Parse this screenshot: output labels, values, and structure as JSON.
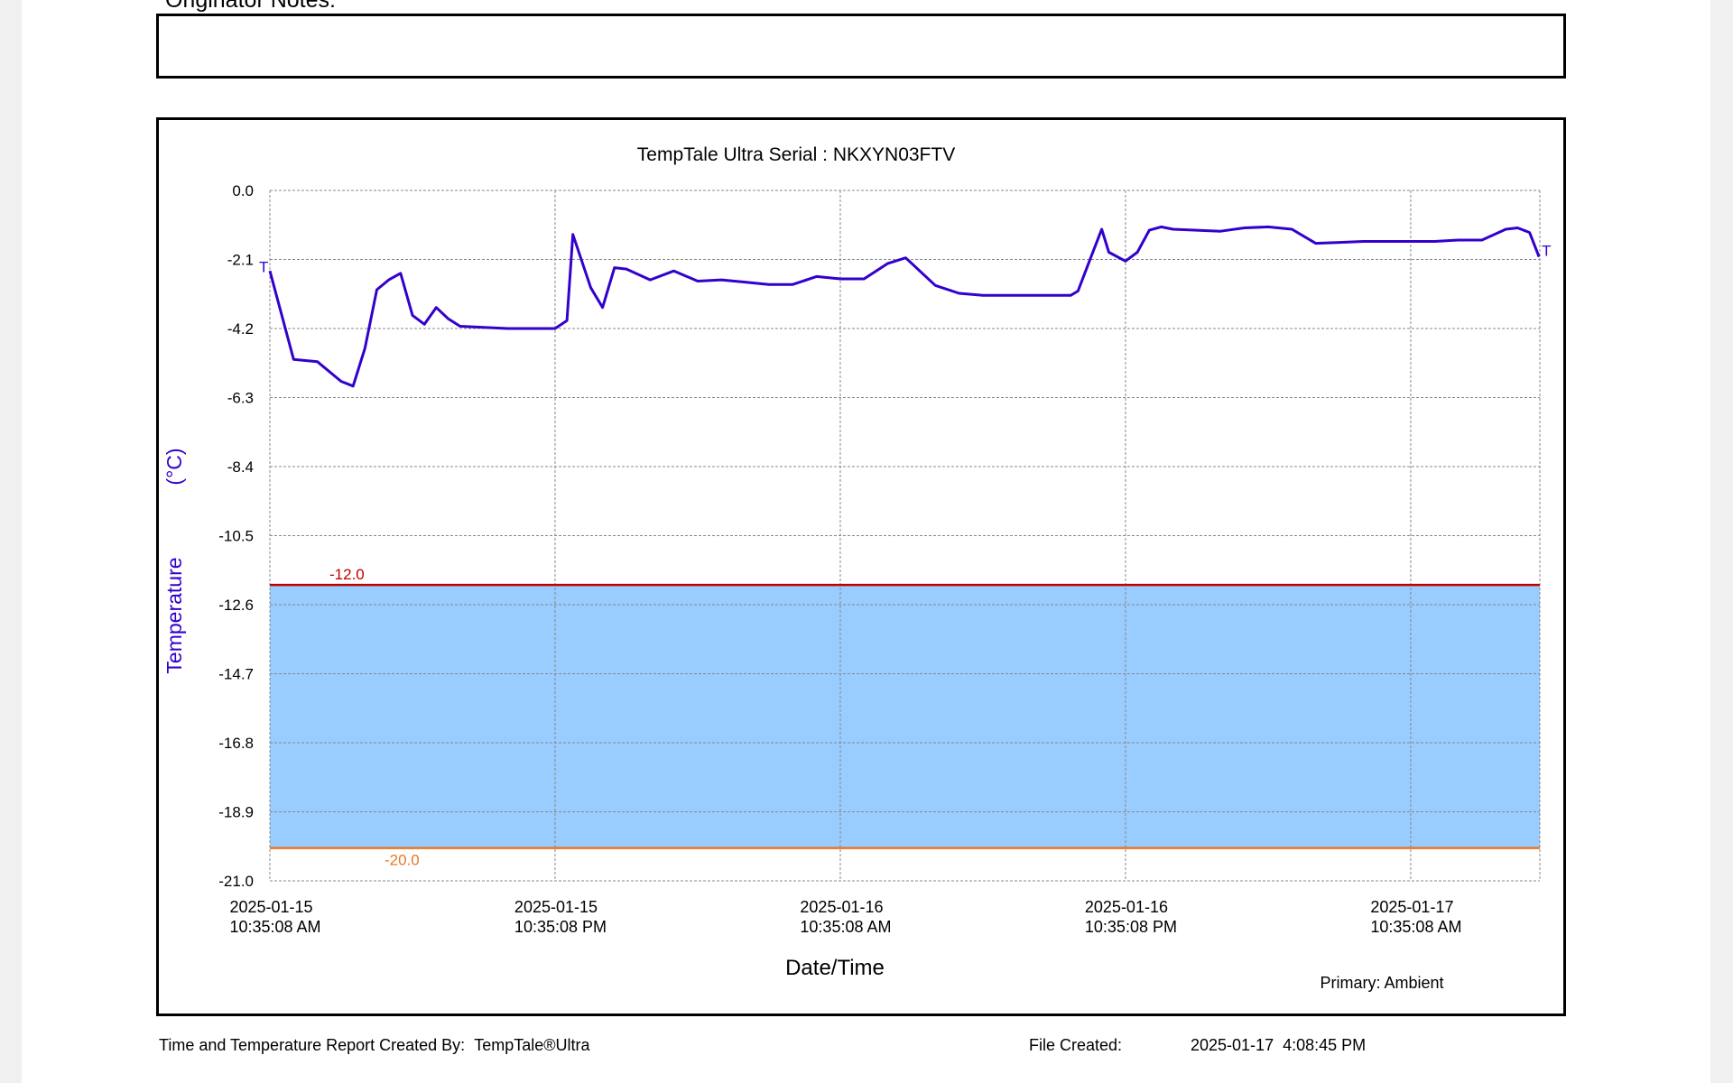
{
  "notes_label": "Originator Notes:",
  "footer_left": "Time and Temperature Report Created By:",
  "footer_product": "TempTale®Ultra",
  "file_created_label": "File Created:",
  "file_created": "2025-01-17  4:08:45 PM",
  "chart_data": {
    "type": "line",
    "title": "TempTale Ultra  Serial : NKXYN03FTV",
    "xlabel": "Date/Time",
    "ylabel": "Temperature",
    "yunit": "(°C)",
    "legend": "Primary: Ambient",
    "trip_marker": "T",
    "grid": true,
    "xlim": [
      "2025-01-15 10:35:08",
      "2025-01-17 16:01:08"
    ],
    "xticks": [
      {
        "value": "2025-01-15 10:35:08",
        "label": "2025-01-15\n10:35:08 AM"
      },
      {
        "value": "2025-01-15 22:35:08",
        "label": "2025-01-15\n10:35:08 PM"
      },
      {
        "value": "2025-01-16 10:35:08",
        "label": "2025-01-16\n10:35:08 AM"
      },
      {
        "value": "2025-01-16 22:35:08",
        "label": "2025-01-16\n10:35:08 PM"
      },
      {
        "value": "2025-01-17 10:35:08",
        "label": "2025-01-17\n10:35:08 AM"
      }
    ],
    "ylim": [
      -21.0,
      0.0
    ],
    "yticks": [
      {
        "value": 0.0,
        "label": "0.0"
      },
      {
        "value": -2.1,
        "label": "-2.1"
      },
      {
        "value": -4.2,
        "label": "-4.2"
      },
      {
        "value": -6.3,
        "label": "-6.3"
      },
      {
        "value": -8.4,
        "label": "-8.4"
      },
      {
        "value": -10.5,
        "label": "-10.5"
      },
      {
        "value": -12.6,
        "label": "-12.6"
      },
      {
        "value": -14.7,
        "label": "-14.7"
      },
      {
        "value": -16.8,
        "label": "-16.8"
      },
      {
        "value": -18.9,
        "label": "-18.9"
      },
      {
        "value": -21.0,
        "label": "-21.0"
      }
    ],
    "thresholds": [
      {
        "value": -12.0,
        "label": "-12.0",
        "color": "#c00000"
      },
      {
        "value": -20.0,
        "label": "-20.0",
        "color": "#e87722"
      }
    ],
    "band_color": "#99ccff",
    "x": [
      "2025-01-15 10:35:08",
      "2025-01-15 11:35:08",
      "2025-01-15 12:35:08",
      "2025-01-15 13:35:08",
      "2025-01-15 14:05:08",
      "2025-01-15 14:35:08",
      "2025-01-15 15:05:08",
      "2025-01-15 15:35:08",
      "2025-01-15 16:05:08",
      "2025-01-15 16:35:08",
      "2025-01-15 17:05:08",
      "2025-01-15 17:35:08",
      "2025-01-15 18:05:08",
      "2025-01-15 18:35:08",
      "2025-01-15 20:35:08",
      "2025-01-15 22:35:08",
      "2025-01-15 23:05:08",
      "2025-01-15 23:20:08",
      "2025-01-16 00:05:08",
      "2025-01-16 00:35:08",
      "2025-01-16 01:05:08",
      "2025-01-16 01:35:08",
      "2025-01-16 02:35:08",
      "2025-01-16 03:35:08",
      "2025-01-16 04:35:08",
      "2025-01-16 05:35:08",
      "2025-01-16 06:35:08",
      "2025-01-16 07:35:08",
      "2025-01-16 08:35:08",
      "2025-01-16 09:35:08",
      "2025-01-16 10:35:08",
      "2025-01-16 11:35:08",
      "2025-01-16 12:35:08",
      "2025-01-16 13:20:08",
      "2025-01-16 14:35:08",
      "2025-01-16 15:35:08",
      "2025-01-16 16:35:08",
      "2025-01-16 20:17:08",
      "2025-01-16 20:35:08",
      "2025-01-16 21:05:08",
      "2025-01-16 21:35:08",
      "2025-01-16 21:53:08",
      "2025-01-16 22:35:08",
      "2025-01-16 23:05:08",
      "2025-01-16 23:35:08",
      "2025-01-17 00:05:08",
      "2025-01-17 00:35:08",
      "2025-01-17 01:35:08",
      "2025-01-17 02:35:08",
      "2025-01-17 03:35:08",
      "2025-01-17 04:35:08",
      "2025-01-17 05:35:08",
      "2025-01-17 06:35:08",
      "2025-01-17 07:35:08",
      "2025-01-17 08:35:08",
      "2025-01-17 09:35:08",
      "2025-01-17 10:35:08",
      "2025-01-17 11:35:08",
      "2025-01-17 12:35:08",
      "2025-01-17 13:35:08",
      "2025-01-17 14:35:08",
      "2025-01-17 15:05:08",
      "2025-01-17 15:35:08",
      "2025-01-17 15:59:08"
    ],
    "series": [
      {
        "name": "Primary: Ambient",
        "color": "#3300cc",
        "values": [
          -2.45,
          -5.14,
          -5.21,
          -5.81,
          -5.95,
          -4.8,
          -3.02,
          -2.72,
          -2.52,
          -3.8,
          -4.07,
          -3.56,
          -3.9,
          -4.13,
          -4.2,
          -4.2,
          -3.96,
          -1.34,
          -2.96,
          -3.56,
          -2.35,
          -2.39,
          -2.72,
          -2.45,
          -2.76,
          -2.72,
          -2.79,
          -2.86,
          -2.86,
          -2.62,
          -2.69,
          -2.69,
          -2.22,
          -2.05,
          -2.89,
          -3.13,
          -3.19,
          -3.19,
          -3.06,
          -2.12,
          -1.18,
          -1.88,
          -2.15,
          -1.88,
          -1.21,
          -1.11,
          -1.18,
          -1.21,
          -1.24,
          -1.14,
          -1.11,
          -1.18,
          -1.61,
          -1.58,
          -1.55,
          -1.55,
          -1.55,
          -1.55,
          -1.51,
          -1.51,
          -1.18,
          -1.14,
          -1.28,
          -2.02
        ]
      }
    ]
  }
}
